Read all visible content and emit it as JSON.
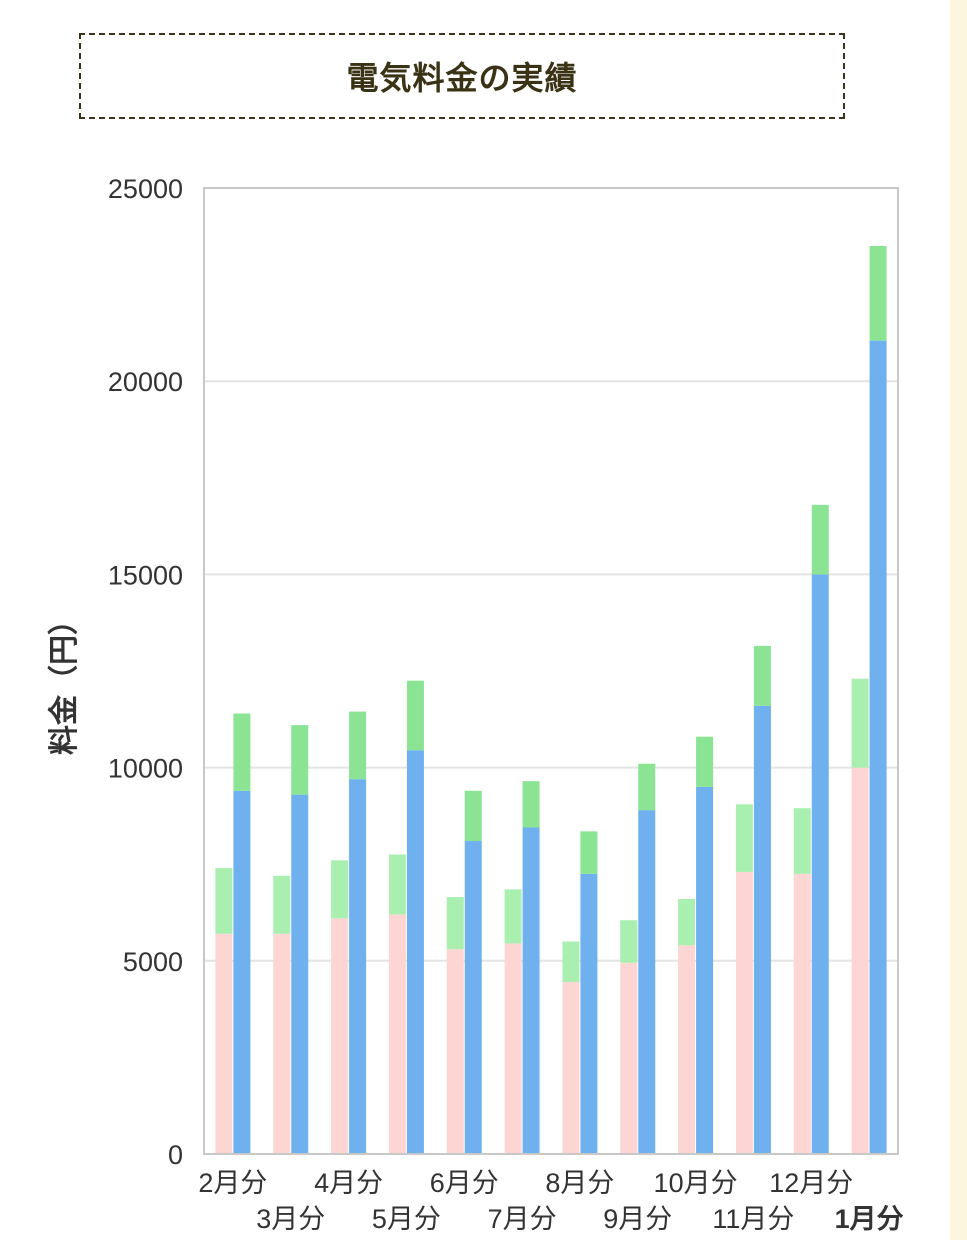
{
  "title": "電気料金の実績",
  "chart_data": {
    "type": "bar",
    "ylabel": "料金（円）",
    "ylim": [
      0,
      25000
    ],
    "yticks": [
      "0",
      "5000",
      "10000",
      "15000",
      "20000",
      "25000"
    ],
    "grid": true,
    "categories": [
      "2月分",
      "3月分",
      "4月分",
      "5月分",
      "6月分",
      "7月分",
      "8月分",
      "9月分",
      "10月分",
      "11月分",
      "12月分",
      "1月分"
    ],
    "highlight_category": "1月分",
    "groups": [
      {
        "segments": [
          {
            "color": "#fdd5d2",
            "values": [
              5700,
              5700,
              6100,
              6200,
              5300,
              5450,
              4450,
              4950,
              5400,
              7300,
              7250,
              10000
            ]
          },
          {
            "color": "#a8efb0",
            "values": [
              1700,
              1500,
              1500,
              1550,
              1350,
              1400,
              1050,
              1100,
              1200,
              1750,
              1700,
              2300
            ]
          }
        ]
      },
      {
        "segments": [
          {
            "color": "#6fb1ef",
            "values": [
              9400,
              9300,
              9700,
              10450,
              8100,
              8450,
              7250,
              8900,
              9500,
              11600,
              15000,
              21050
            ]
          },
          {
            "color": "#8be493",
            "values": [
              2000,
              1800,
              1750,
              1800,
              1300,
              1200,
              1100,
              1200,
              1300,
              1550,
              1800,
              2450
            ]
          }
        ]
      }
    ]
  }
}
